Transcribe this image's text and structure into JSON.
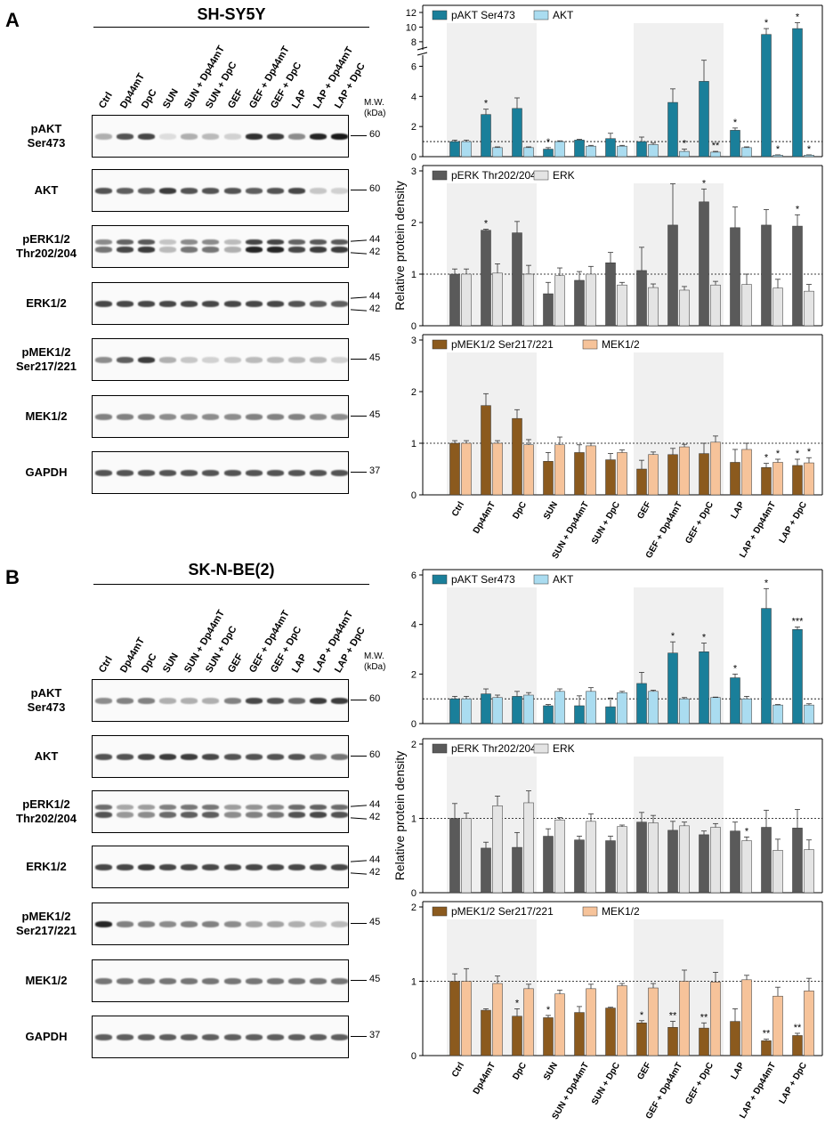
{
  "panels": [
    {
      "letter": "A",
      "cell_line": "SH-SY5Y",
      "mw_header": "M.W.\n(kDa)",
      "lanes": [
        "Ctrl",
        "Dp44mT",
        "DpC",
        "SUN",
        "SUN + Dp44mT",
        "SUN + DpC",
        "GEF",
        "GEF + Dp44mT",
        "GEF + DpC",
        "LAP",
        "LAP + Dp44mT",
        "LAP + DpC"
      ],
      "blots": [
        {
          "label": "pAKT\nSer473",
          "mw": [
            "60"
          ],
          "intensity": [
            0.35,
            0.75,
            0.8,
            0.15,
            0.35,
            0.3,
            0.2,
            0.9,
            0.85,
            0.5,
            0.95,
            1.0
          ],
          "double": false
        },
        {
          "label": "AKT",
          "mw": [
            "60"
          ],
          "intensity": [
            0.75,
            0.7,
            0.7,
            0.85,
            0.75,
            0.75,
            0.75,
            0.7,
            0.75,
            0.8,
            0.25,
            0.2
          ],
          "double": false
        },
        {
          "label": "pERK1/2\nThr202/204",
          "mw": [
            "44",
            "42"
          ],
          "intensity": [
            0.6,
            0.8,
            0.85,
            0.3,
            0.6,
            0.6,
            0.35,
            0.95,
            0.95,
            0.8,
            0.85,
            0.85
          ],
          "double": true
        },
        {
          "label": "ERK1/2",
          "mw": [
            "44",
            "42"
          ],
          "intensity": [
            0.8,
            0.8,
            0.8,
            0.8,
            0.8,
            0.8,
            0.8,
            0.8,
            0.8,
            0.75,
            0.7,
            0.7
          ],
          "double": false
        },
        {
          "label": "pMEK1/2\nSer217/221",
          "mw": [
            "45"
          ],
          "intensity": [
            0.5,
            0.7,
            0.85,
            0.35,
            0.25,
            0.2,
            0.25,
            0.3,
            0.3,
            0.3,
            0.3,
            0.2
          ],
          "double": false
        },
        {
          "label": "MEK1/2",
          "mw": [
            "45"
          ],
          "intensity": [
            0.55,
            0.55,
            0.55,
            0.5,
            0.5,
            0.5,
            0.5,
            0.55,
            0.55,
            0.55,
            0.5,
            0.5
          ],
          "double": false
        },
        {
          "label": "GAPDH",
          "mw": [
            "37"
          ],
          "intensity": [
            0.75,
            0.75,
            0.75,
            0.75,
            0.75,
            0.75,
            0.75,
            0.75,
            0.75,
            0.75,
            0.75,
            0.75
          ],
          "double": false
        }
      ]
    },
    {
      "letter": "B",
      "cell_line": "SK-N-BE(2)",
      "mw_header": "M.W.\n(kDa)",
      "lanes": [
        "Ctrl",
        "Dp44mT",
        "DpC",
        "SUN",
        "SUN + Dp44mT",
        "SUN + DpC",
        "GEF",
        "GEF + Dp44mT",
        "GEF + DpC",
        "LAP",
        "LAP + Dp44mT",
        "LAP + DpC"
      ],
      "blots": [
        {
          "label": "pAKT\nSer473",
          "mw": [
            "60"
          ],
          "intensity": [
            0.5,
            0.55,
            0.55,
            0.35,
            0.35,
            0.35,
            0.55,
            0.8,
            0.75,
            0.65,
            0.85,
            0.85
          ],
          "double": false
        },
        {
          "label": "AKT",
          "mw": [
            "60"
          ],
          "intensity": [
            0.75,
            0.75,
            0.8,
            0.85,
            0.85,
            0.8,
            0.75,
            0.75,
            0.75,
            0.75,
            0.6,
            0.6
          ],
          "double": false
        },
        {
          "label": "pERK1/2\nThr202/204",
          "mw": [
            "44",
            "42"
          ],
          "intensity": [
            0.75,
            0.45,
            0.5,
            0.65,
            0.7,
            0.7,
            0.5,
            0.55,
            0.6,
            0.75,
            0.8,
            0.75
          ],
          "double": true
        },
        {
          "label": "ERK1/2",
          "mw": [
            "44",
            "42"
          ],
          "intensity": [
            0.8,
            0.8,
            0.85,
            0.8,
            0.8,
            0.8,
            0.8,
            0.8,
            0.8,
            0.8,
            0.8,
            0.8
          ],
          "double": false
        },
        {
          "label": "pMEK1/2\nSer217/221",
          "mw": [
            "45"
          ],
          "intensity": [
            0.95,
            0.55,
            0.55,
            0.5,
            0.55,
            0.55,
            0.5,
            0.4,
            0.4,
            0.35,
            0.3,
            0.3
          ],
          "double": false
        },
        {
          "label": "MEK1/2",
          "mw": [
            "45"
          ],
          "intensity": [
            0.6,
            0.6,
            0.6,
            0.6,
            0.6,
            0.6,
            0.6,
            0.6,
            0.6,
            0.6,
            0.6,
            0.6
          ],
          "double": false
        },
        {
          "label": "GAPDH",
          "mw": [
            "37"
          ],
          "intensity": [
            0.7,
            0.7,
            0.7,
            0.7,
            0.7,
            0.7,
            0.7,
            0.7,
            0.7,
            0.7,
            0.7,
            0.7
          ],
          "double": false
        }
      ]
    }
  ],
  "chart_data": [
    {
      "type": "bar",
      "panel": "A",
      "position": "top",
      "categories": [
        "Ctrl",
        "Dp44mT",
        "DpC",
        "SUN",
        "SUN + Dp44mT",
        "SUN + DpC",
        "GEF",
        "GEF + Dp44mT",
        "GEF + DpC",
        "LAP",
        "LAP + Dp44mT",
        "LAP + DpC"
      ],
      "series": [
        {
          "name": "pAKT Ser473",
          "color": "#1a7f9a",
          "values": [
            1.0,
            2.8,
            3.2,
            0.5,
            1.1,
            1.2,
            1.0,
            3.6,
            5.0,
            1.75,
            9.0,
            9.8
          ],
          "errors": [
            0.1,
            0.35,
            0.7,
            0.1,
            0.05,
            0.35,
            0.3,
            0.9,
            1.4,
            0.15,
            0.8,
            0.8
          ],
          "stars": [
            "",
            "*",
            "",
            "*",
            "",
            "",
            "",
            "",
            "",
            "*",
            "*",
            "*"
          ]
        },
        {
          "name": "AKT",
          "color": "#aadcf0",
          "values": [
            1.0,
            0.6,
            0.6,
            1.0,
            0.7,
            0.7,
            0.8,
            0.35,
            0.3,
            0.6,
            0.1,
            0.1
          ],
          "errors": [
            0.1,
            0.05,
            0.05,
            0.05,
            0.05,
            0.05,
            0.1,
            0.15,
            0.05,
            0.05,
            0.02,
            0.02
          ],
          "stars": [
            "",
            "",
            "",
            "",
            "",
            "",
            "",
            "*",
            "**",
            "",
            "*",
            "*"
          ]
        }
      ],
      "y_ticks": [
        0,
        2,
        4,
        6,
        8,
        10,
        12
      ],
      "axis_break": [
        6.5,
        7.5
      ],
      "reference_line": 1
    },
    {
      "type": "bar",
      "panel": "A",
      "position": "middle",
      "categories": [
        "Ctrl",
        "Dp44mT",
        "DpC",
        "SUN",
        "SUN + Dp44mT",
        "SUN + DpC",
        "GEF",
        "GEF + Dp44mT",
        "GEF + DpC",
        "LAP",
        "LAP + Dp44mT",
        "LAP + DpC"
      ],
      "series": [
        {
          "name": "pERK Thr202/204",
          "color": "#5a5a5a",
          "values": [
            1.0,
            1.85,
            1.8,
            0.62,
            0.88,
            1.22,
            1.07,
            1.95,
            2.4,
            1.9,
            1.95,
            1.93
          ],
          "errors": [
            0.1,
            0.02,
            0.22,
            0.22,
            0.17,
            0.2,
            0.45,
            0.8,
            0.25,
            0.4,
            0.3,
            0.22
          ],
          "stars": [
            "",
            "*",
            "",
            "",
            "",
            "",
            "",
            "",
            "*",
            "",
            "",
            "*"
          ]
        },
        {
          "name": "ERK",
          "color": "#e4e4e4",
          "values": [
            1.0,
            1.02,
            1.0,
            0.97,
            1.0,
            0.79,
            0.74,
            0.69,
            0.79,
            0.8,
            0.73,
            0.67
          ],
          "errors": [
            0.1,
            0.18,
            0.17,
            0.15,
            0.15,
            0.05,
            0.07,
            0.07,
            0.07,
            0.2,
            0.17,
            0.13
          ],
          "stars": [
            "",
            "",
            "",
            "",
            "",
            "",
            "",
            "",
            "",
            "",
            "",
            ""
          ]
        }
      ],
      "y_ticks": [
        0,
        1,
        2,
        3
      ],
      "reference_line": 1,
      "ylabel": "Relative protein density"
    },
    {
      "type": "bar",
      "panel": "A",
      "position": "bottom",
      "categories": [
        "Ctrl",
        "Dp44mT",
        "DpC",
        "SUN",
        "SUN + Dp44mT",
        "SUN + DpC",
        "GEF",
        "GEF + Dp44mT",
        "GEF + DpC",
        "LAP",
        "LAP + Dp44mT",
        "LAP + DpC"
      ],
      "series": [
        {
          "name": "pMEK1/2 Ser217/221",
          "color": "#8b5a1e",
          "values": [
            1.0,
            1.73,
            1.48,
            0.65,
            0.82,
            0.68,
            0.5,
            0.78,
            0.8,
            0.63,
            0.53,
            0.57
          ],
          "errors": [
            0.05,
            0.23,
            0.17,
            0.17,
            0.15,
            0.12,
            0.17,
            0.12,
            0.2,
            0.25,
            0.08,
            0.12
          ],
          "stars": [
            "",
            "",
            "",
            "",
            "",
            "",
            "",
            "",
            "",
            "",
            "*",
            "*"
          ]
        },
        {
          "name": "MEK1/2",
          "color": "#f6c39a",
          "values": [
            1.0,
            1.0,
            0.97,
            0.97,
            0.95,
            0.82,
            0.78,
            0.93,
            1.02,
            0.88,
            0.63,
            0.62
          ],
          "errors": [
            0.05,
            0.05,
            0.1,
            0.15,
            0.05,
            0.05,
            0.05,
            0.05,
            0.12,
            0.12,
            0.06,
            0.1
          ],
          "stars": [
            "",
            "",
            "",
            "",
            "",
            "",
            "",
            "",
            "",
            "",
            "*",
            "*"
          ]
        }
      ],
      "y_ticks": [
        0,
        1,
        2,
        3
      ],
      "reference_line": 1
    },
    {
      "type": "bar",
      "panel": "B",
      "position": "top",
      "categories": [
        "Ctrl",
        "Dp44mT",
        "DpC",
        "SUN",
        "SUN + Dp44mT",
        "SUN + DpC",
        "GEF",
        "GEF + Dp44mT",
        "GEF + DpC",
        "LAP",
        "LAP + Dp44mT",
        "LAP + DpC"
      ],
      "series": [
        {
          "name": "pAKT Ser473",
          "color": "#1a7f9a",
          "values": [
            1.0,
            1.2,
            1.1,
            0.72,
            0.72,
            0.68,
            1.62,
            2.85,
            2.9,
            1.85,
            4.65,
            3.8
          ],
          "errors": [
            0.1,
            0.2,
            0.2,
            0.05,
            0.4,
            0.35,
            0.45,
            0.45,
            0.35,
            0.15,
            0.8,
            0.1
          ],
          "stars": [
            "",
            "",
            "",
            "",
            "",
            "",
            "",
            "*",
            "*",
            "*",
            "*",
            "***"
          ]
        },
        {
          "name": "AKT",
          "color": "#aadcf0",
          "values": [
            1.0,
            1.05,
            1.15,
            1.3,
            1.3,
            1.25,
            1.3,
            1.0,
            1.05,
            1.0,
            0.75,
            0.75
          ],
          "errors": [
            0.1,
            0.1,
            0.1,
            0.1,
            0.15,
            0.05,
            0.05,
            0.05,
            0.02,
            0.1,
            0.02,
            0.05
          ],
          "stars": [
            "",
            "",
            "",
            "",
            "",
            "",
            "",
            "",
            "",
            "",
            "",
            ""
          ]
        }
      ],
      "y_ticks": [
        0,
        2,
        4,
        6
      ],
      "reference_line": 1
    },
    {
      "type": "bar",
      "panel": "B",
      "position": "middle",
      "categories": [
        "Ctrl",
        "Dp44mT",
        "DpC",
        "SUN",
        "SUN + Dp44mT",
        "SUN + DpC",
        "GEF",
        "GEF + Dp44mT",
        "GEF + DpC",
        "LAP",
        "LAP + Dp44mT",
        "LAP + DpC"
      ],
      "series": [
        {
          "name": "pERK Thr202/204",
          "color": "#5a5a5a",
          "values": [
            1.0,
            0.6,
            0.61,
            0.76,
            0.71,
            0.7,
            0.95,
            0.84,
            0.78,
            0.83,
            0.88,
            0.87
          ],
          "errors": [
            0.2,
            0.08,
            0.2,
            0.1,
            0.05,
            0.06,
            0.13,
            0.12,
            0.05,
            0.12,
            0.23,
            0.25
          ],
          "stars": [
            "",
            "",
            "",
            "",
            "",
            "",
            "",
            "",
            "",
            "",
            "",
            ""
          ]
        },
        {
          "name": "ERK",
          "color": "#e4e4e4",
          "values": [
            1.0,
            1.17,
            1.21,
            0.98,
            0.96,
            0.89,
            0.94,
            0.9,
            0.88,
            0.7,
            0.57,
            0.58
          ],
          "errors": [
            0.07,
            0.13,
            0.16,
            0.03,
            0.1,
            0.02,
            0.1,
            0.05,
            0.05,
            0.05,
            0.15,
            0.13
          ],
          "stars": [
            "",
            "",
            "",
            "",
            "",
            "",
            "",
            "",
            "",
            "*",
            "",
            ""
          ]
        }
      ],
      "y_ticks": [
        0,
        1,
        2
      ],
      "reference_line": 1,
      "ylabel": "Relative protein density"
    },
    {
      "type": "bar",
      "panel": "B",
      "position": "bottom",
      "categories": [
        "Ctrl",
        "Dp44mT",
        "DpC",
        "SUN",
        "SUN + Dp44mT",
        "SUN + DpC",
        "GEF",
        "GEF + Dp44mT",
        "GEF + DpC",
        "LAP",
        "LAP + Dp44mT",
        "LAP + DpC"
      ],
      "series": [
        {
          "name": "pMEK1/2 Ser217/221",
          "color": "#8b5a1e",
          "values": [
            1.0,
            0.61,
            0.53,
            0.51,
            0.58,
            0.64,
            0.44,
            0.38,
            0.37,
            0.46,
            0.2,
            0.27
          ],
          "errors": [
            0.1,
            0.02,
            0.1,
            0.03,
            0.08,
            0.01,
            0.03,
            0.08,
            0.07,
            0.17,
            0.02,
            0.03
          ],
          "stars": [
            "",
            "",
            "*",
            "*",
            "",
            "",
            "*",
            "**",
            "**",
            "",
            "**",
            "**"
          ]
        },
        {
          "name": "MEK1/2",
          "color": "#f6c39a",
          "values": [
            1.0,
            0.97,
            0.9,
            0.83,
            0.9,
            0.94,
            0.91,
            1.0,
            0.99,
            1.02,
            0.8,
            0.87
          ],
          "errors": [
            0.17,
            0.1,
            0.06,
            0.05,
            0.06,
            0.03,
            0.06,
            0.15,
            0.13,
            0.06,
            0.12,
            0.17
          ],
          "stars": [
            "",
            "",
            "",
            "",
            "",
            "",
            "",
            "",
            "",
            "",
            "",
            ""
          ]
        }
      ],
      "y_ticks": [
        0,
        1,
        2
      ],
      "reference_line": 1
    }
  ]
}
